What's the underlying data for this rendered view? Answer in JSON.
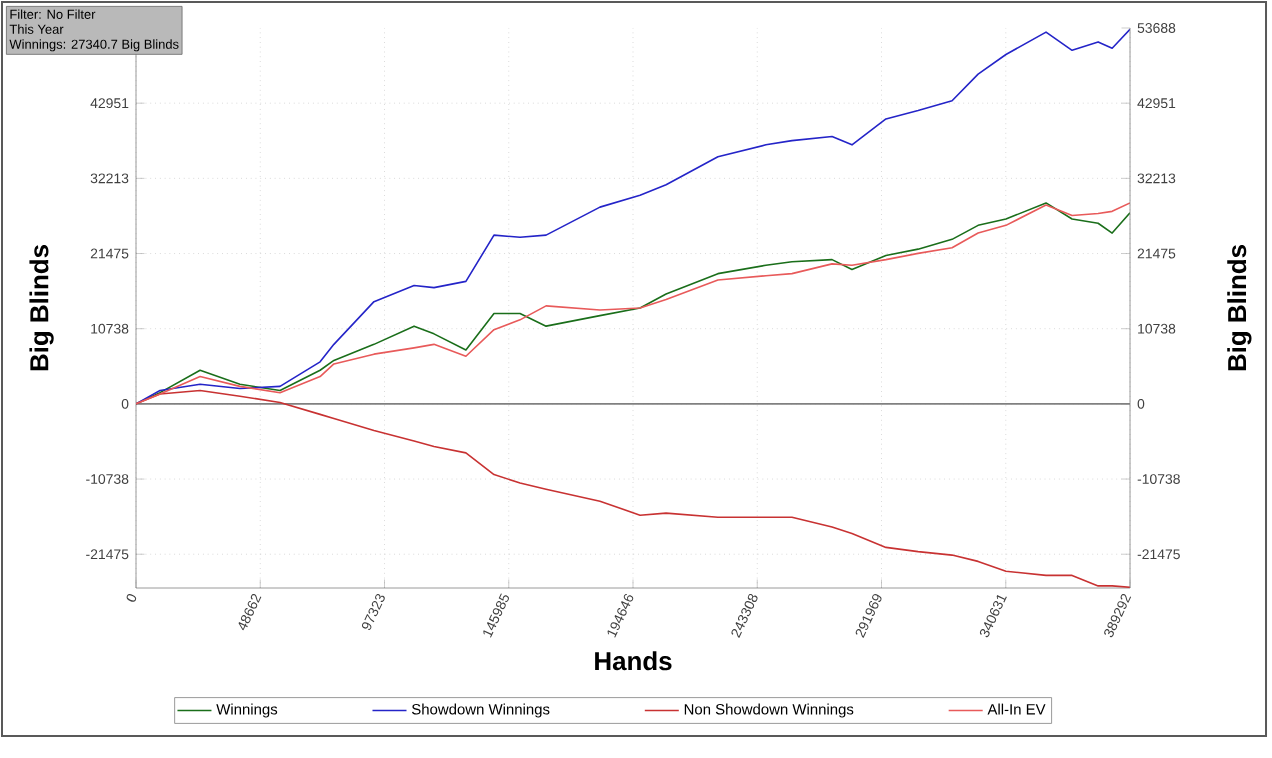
{
  "chart_data": {
    "type": "line",
    "xlabel": "Hands",
    "ylabel": "Big Blinds",
    "y2label": "Big Blinds",
    "annotations": [
      "Filter: No Filter",
      "This Year",
      "Winnings: 27340.7 Big Blinds"
    ],
    "x": [
      0,
      9400,
      25100,
      40700,
      56400,
      72100,
      77500,
      93200,
      108900,
      116700,
      129200,
      140200,
      150400,
      160600,
      181700,
      197400,
      207600,
      227900,
      246700,
      256900,
      272600,
      280400,
      293700,
      306300,
      319600,
      329800,
      340700,
      356400,
      366600,
      376800,
      382300,
      389292
    ],
    "series": [
      {
        "name": "Winnings",
        "color": "#1a6e1a",
        "values": [
          0,
          1600,
          4800,
          2800,
          1900,
          4800,
          6200,
          8500,
          11100,
          10000,
          7700,
          12900,
          12900,
          11100,
          12600,
          13700,
          15700,
          18600,
          19800,
          20300,
          20600,
          19200,
          21200,
          22100,
          23500,
          25500,
          26400,
          28700,
          26400,
          25800,
          24400,
          27300
        ]
      },
      {
        "name": "Showdown Winnings",
        "color": "#2424c8",
        "values": [
          0,
          1900,
          2800,
          2200,
          2500,
          6000,
          8500,
          14600,
          16900,
          16600,
          17500,
          24100,
          23800,
          24100,
          28100,
          29800,
          31300,
          35300,
          37000,
          37600,
          38200,
          37000,
          40700,
          41900,
          43300,
          47100,
          49900,
          53100,
          50500,
          51700,
          50800,
          53500
        ]
      },
      {
        "name": "Non Showdown Winnings",
        "color": "#c83232",
        "values": [
          0,
          1400,
          1900,
          1100,
          200,
          -1500,
          -2100,
          -3800,
          -5300,
          -6100,
          -7000,
          -10100,
          -11300,
          -12200,
          -13900,
          -15900,
          -15600,
          -16200,
          -16200,
          -16200,
          -17600,
          -18500,
          -20500,
          -21100,
          -21600,
          -22500,
          -23900,
          -24500,
          -24500,
          -26000,
          -26000,
          -26200
        ]
      },
      {
        "name": "All-In EV",
        "color": "#e85a5a",
        "values": [
          0,
          1400,
          3900,
          2500,
          1600,
          3900,
          5700,
          7100,
          8000,
          8500,
          6800,
          10600,
          12000,
          14000,
          13400,
          13700,
          14900,
          17700,
          18300,
          18600,
          20000,
          19800,
          20600,
          21500,
          22300,
          24400,
          25500,
          28400,
          26900,
          27200,
          27500,
          28700
        ]
      }
    ],
    "xlim": [
      0,
      389292
    ],
    "xticks": [
      0,
      48662,
      97323,
      145985,
      194646,
      243308,
      291969,
      340631,
      389292
    ],
    "ylim": [
      -26300,
      53688
    ],
    "yticks": [
      -21475,
      -10738,
      0,
      10738,
      21475,
      32213,
      42951
    ],
    "y2lim": [
      -26300,
      53688
    ],
    "y2ticks": [
      -21475,
      -10738,
      0,
      10738,
      21475,
      32213,
      42951,
      53688
    ],
    "ref_lines": [
      {
        "axis": "y",
        "value": 0,
        "color": "#808080"
      }
    ],
    "grid": true,
    "legend": "bottom",
    "line_style": "solid",
    "marker": "none"
  }
}
